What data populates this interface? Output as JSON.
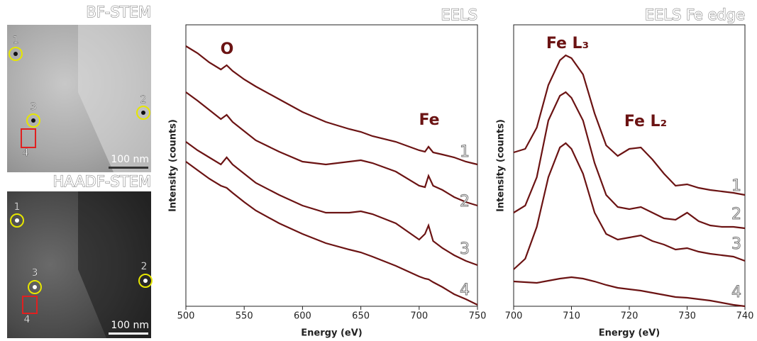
{
  "micrographs": [
    {
      "title": "BF-STEM",
      "scale_bar": "100 nm",
      "markers": [
        "1",
        "2",
        "3",
        "4"
      ]
    },
    {
      "title": "HAADF-STEM",
      "scale_bar": "100 nm",
      "markers": [
        "1",
        "2",
        "3",
        "4"
      ]
    }
  ],
  "chart_data": [
    {
      "type": "line",
      "title": "EELS",
      "x_label": "Energy (eV)",
      "y_label": "Intensity (counts)",
      "annotations": [
        "O",
        "Fe"
      ],
      "x": [
        500,
        510,
        520,
        530,
        535,
        540,
        550,
        560,
        580,
        600,
        620,
        640,
        650,
        660,
        680,
        700,
        705,
        708,
        712,
        720,
        730,
        740,
        750
      ],
      "xlim": [
        500,
        750
      ],
      "xticks": [
        500,
        550,
        600,
        650,
        700,
        750
      ],
      "ylim": [
        0,
        397
      ],
      "series": [
        {
          "name": "1",
          "color": "#6b1313",
          "values": [
            367,
            357,
            344,
            334,
            340,
            332,
            320,
            310,
            292,
            274,
            260,
            250,
            246,
            240,
            232,
            220,
            218,
            225,
            217,
            214,
            210,
            204,
            200
          ]
        },
        {
          "name": "2",
          "color": "#6b1313",
          "values": [
            302,
            290,
            277,
            264,
            270,
            260,
            247,
            234,
            218,
            204,
            200,
            204,
            206,
            202,
            190,
            170,
            168,
            184,
            170,
            164,
            154,
            147,
            142
          ]
        },
        {
          "name": "3",
          "color": "#6b1313",
          "values": [
            232,
            220,
            210,
            200,
            210,
            200,
            187,
            174,
            157,
            142,
            132,
            132,
            134,
            130,
            117,
            94,
            102,
            114,
            92,
            82,
            72,
            64,
            58
          ]
        },
        {
          "name": "4",
          "color": "#6b1313",
          "values": [
            204,
            192,
            180,
            170,
            167,
            160,
            147,
            135,
            117,
            102,
            89,
            80,
            76,
            70,
            57,
            42,
            39,
            38,
            34,
            27,
            17,
            10,
            2
          ]
        }
      ]
    },
    {
      "type": "line",
      "title": "EELS  Fe edge",
      "x_label": "Energy (eV)",
      "y_label": "Intensity (counts)",
      "annotations": [
        "Fe L₃",
        "Fe L₂"
      ],
      "x": [
        700,
        702,
        704,
        706,
        708,
        709,
        710,
        712,
        714,
        716,
        718,
        720,
        722,
        724,
        726,
        728,
        730,
        732,
        734,
        736,
        738,
        740
      ],
      "xlim": [
        700,
        740
      ],
      "xticks": [
        700,
        710,
        720,
        730,
        740
      ],
      "ylim": [
        0,
        397
      ],
      "series": [
        {
          "name": "1",
          "color": "#6b1313",
          "values": [
            217,
            222,
            252,
            312,
            347,
            354,
            350,
            327,
            272,
            227,
            212,
            222,
            224,
            207,
            187,
            170,
            172,
            167,
            164,
            162,
            160,
            157
          ]
        },
        {
          "name": "2",
          "color": "#6b1313",
          "values": [
            132,
            142,
            182,
            262,
            297,
            302,
            294,
            262,
            202,
            157,
            140,
            137,
            140,
            132,
            124,
            122,
            132,
            120,
            114,
            112,
            112,
            110
          ]
        },
        {
          "name": "3",
          "color": "#6b1313",
          "values": [
            52,
            67,
            112,
            182,
            224,
            230,
            222,
            187,
            132,
            102,
            94,
            97,
            100,
            92,
            87,
            80,
            82,
            77,
            74,
            72,
            70,
            64
          ]
        },
        {
          "name": "4",
          "color": "#6b1313",
          "values": [
            35,
            34,
            33,
            36,
            39,
            40,
            41,
            39,
            35,
            30,
            26,
            24,
            22,
            19,
            16,
            13,
            12,
            10,
            8,
            5,
            2,
            0
          ]
        }
      ]
    }
  ]
}
